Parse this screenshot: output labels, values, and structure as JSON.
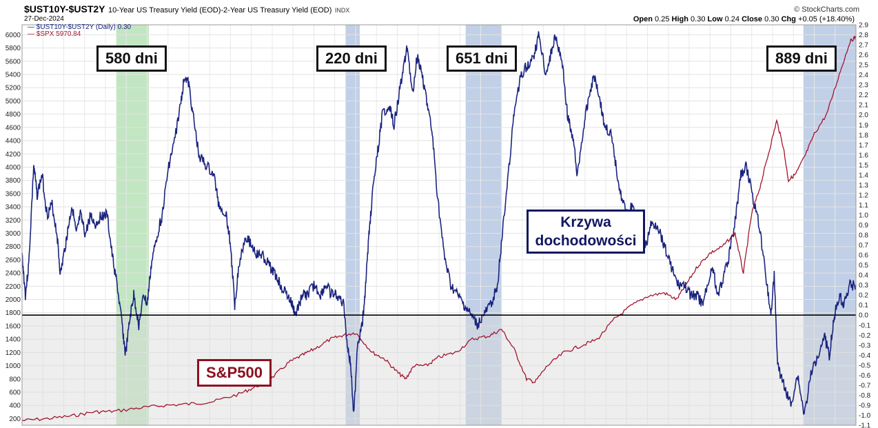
{
  "header": {
    "symbol": "$UST10Y-$UST2Y",
    "description": "10-Year US Treasury Yield (EOD)-2-Year US Treasury Yield (EOD)",
    "kind": "INDX",
    "date": "27-Dec-2024",
    "source": "© StockCharts.com",
    "ohlc": {
      "open_label": "Open",
      "open": "0.25",
      "high_label": "High",
      "high": "0.30",
      "low_label": "Low",
      "low": "0.24",
      "close_label": "Close",
      "close": "0.30",
      "chg_label": "Chg",
      "chg": "+0.05 (+18.40%)"
    }
  },
  "legend": {
    "spread": "$UST10Y-$UST2Y (Daily) 0.30",
    "spx": "$SPX 5970.84"
  },
  "annotations": {
    "periods": [
      "580 dni",
      "220 dni",
      "651 dni",
      "889 dni"
    ],
    "curve_label": "Krzywa dochodowości",
    "spx_label": "S&P500"
  },
  "colors": {
    "spread": "#1a237e",
    "spx": "#a3142d",
    "band_green": "#8fd18f",
    "band_blue": "#8ea9d4",
    "zero_line": "#000000",
    "shade_below_zero": "#d9d9d9"
  },
  "chart_data": {
    "type": "line",
    "title": "$UST10Y-$UST2Y",
    "left_axis": {
      "ylim": [
        100,
        6150
      ],
      "ticks": [
        200,
        400,
        600,
        800,
        1000,
        1200,
        1400,
        1600,
        1800,
        2000,
        2200,
        2400,
        2600,
        2800,
        3000,
        3200,
        3400,
        3600,
        3800,
        4000,
        4200,
        4400,
        4600,
        4800,
        5000,
        5200,
        5400,
        5600,
        5800,
        6000
      ]
    },
    "right_axis": {
      "ylim": [
        -1.1,
        2.9
      ],
      "ticks": [
        -1.1,
        -1.0,
        -0.9,
        -0.8,
        -0.7,
        -0.6,
        -0.5,
        -0.4,
        -0.3,
        -0.2,
        -0.1,
        0.0,
        0.1,
        0.2,
        0.3,
        0.4,
        0.5,
        0.6,
        0.7,
        0.8,
        0.9,
        1.0,
        1.1,
        1.2,
        1.3,
        1.4,
        1.5,
        1.6,
        1.7,
        1.8,
        1.9,
        2.0,
        2.1,
        2.2,
        2.3,
        2.4,
        2.5,
        2.6,
        2.7,
        2.8,
        2.9
      ]
    },
    "x": {
      "range": [
        0,
        100
      ]
    },
    "bands": [
      {
        "label": "580 dni",
        "x0": 11.3,
        "x1": 15.2,
        "color": "green"
      },
      {
        "label": "220 dni",
        "x0": 38.8,
        "x1": 40.5,
        "color": "blue"
      },
      {
        "label": "651 dni",
        "x0": 53.2,
        "x1": 57.5,
        "color": "blue"
      },
      {
        "label": "889 dni",
        "x0": 93.7,
        "x1": 100,
        "color": "blue"
      }
    ],
    "series": [
      {
        "name": "$UST10Y-$UST2Y (Daily) 0.30",
        "axis": "right",
        "points": [
          [
            0,
            0.6
          ],
          [
            0.4,
            0.2
          ],
          [
            0.8,
            0.5
          ],
          [
            1.4,
            1.5
          ],
          [
            1.8,
            1.2
          ],
          [
            2.4,
            1.4
          ],
          [
            3.0,
            1.0
          ],
          [
            3.6,
            1.1
          ],
          [
            4.2,
            0.8
          ],
          [
            4.6,
            0.4
          ],
          [
            5.2,
            0.7
          ],
          [
            5.6,
            0.9
          ],
          [
            6.0,
            1.1
          ],
          [
            6.5,
            0.8
          ],
          [
            7.0,
            1.0
          ],
          [
            7.6,
            0.8
          ],
          [
            8.2,
            1.0
          ],
          [
            8.8,
            0.9
          ],
          [
            9.5,
            1.0
          ],
          [
            10.2,
            1.0
          ],
          [
            10.8,
            0.6
          ],
          [
            11.4,
            0.3
          ],
          [
            12.0,
            -0.1
          ],
          [
            12.4,
            -0.4
          ],
          [
            13.0,
            0.0
          ],
          [
            13.4,
            0.2
          ],
          [
            14.0,
            -0.1
          ],
          [
            14.6,
            0.2
          ],
          [
            15.0,
            0.1
          ],
          [
            15.5,
            0.5
          ],
          [
            16.2,
            0.8
          ],
          [
            16.8,
            1.0
          ],
          [
            17.6,
            1.5
          ],
          [
            18.2,
            1.7
          ],
          [
            19.0,
            2.1
          ],
          [
            19.5,
            2.4
          ],
          [
            20.0,
            2.3
          ],
          [
            20.5,
            2.0
          ],
          [
            21.2,
            1.6
          ],
          [
            22.0,
            1.5
          ],
          [
            23.0,
            1.4
          ],
          [
            23.6,
            1.1
          ],
          [
            24.5,
            1.0
          ],
          [
            25.0,
            0.7
          ],
          [
            25.5,
            0.1
          ],
          [
            26.0,
            0.5
          ],
          [
            26.8,
            0.8
          ],
          [
            27.5,
            0.7
          ],
          [
            28.2,
            0.6
          ],
          [
            28.8,
            0.6
          ],
          [
            29.6,
            0.5
          ],
          [
            30.4,
            0.4
          ],
          [
            31.0,
            0.3
          ],
          [
            31.8,
            0.2
          ],
          [
            32.4,
            0.1
          ],
          [
            32.8,
            0.0
          ],
          [
            33.6,
            0.2
          ],
          [
            34.2,
            0.2
          ],
          [
            35.0,
            0.3
          ],
          [
            35.8,
            0.2
          ],
          [
            36.4,
            0.3
          ],
          [
            37.2,
            0.2
          ],
          [
            37.8,
            0.2
          ],
          [
            38.6,
            0.1
          ],
          [
            39.0,
            -0.3
          ],
          [
            39.4,
            -0.5
          ],
          [
            39.8,
            -1.0
          ],
          [
            40.2,
            -0.3
          ],
          [
            40.8,
            -0.1
          ],
          [
            41.2,
            0.3
          ],
          [
            41.6,
            0.8
          ],
          [
            42.0,
            1.2
          ],
          [
            42.6,
            1.6
          ],
          [
            43.2,
            2.0
          ],
          [
            44.0,
            2.1
          ],
          [
            44.6,
            1.9
          ],
          [
            45.2,
            2.2
          ],
          [
            45.8,
            2.5
          ],
          [
            46.2,
            2.7
          ],
          [
            46.8,
            2.2
          ],
          [
            47.4,
            2.6
          ],
          [
            48.0,
            2.4
          ],
          [
            48.6,
            2.1
          ],
          [
            49.2,
            1.8
          ],
          [
            49.8,
            1.2
          ],
          [
            50.6,
            0.6
          ],
          [
            51.4,
            0.3
          ],
          [
            52.2,
            0.2
          ],
          [
            53.0,
            0.1
          ],
          [
            53.8,
            0.0
          ],
          [
            54.6,
            -0.1
          ],
          [
            55.4,
            0.0
          ],
          [
            56.2,
            0.1
          ],
          [
            57.0,
            0.3
          ],
          [
            57.6,
            0.8
          ],
          [
            58.4,
            1.5
          ],
          [
            59.0,
            2.0
          ],
          [
            59.8,
            2.4
          ],
          [
            60.6,
            2.5
          ],
          [
            61.4,
            2.6
          ],
          [
            62.0,
            2.8
          ],
          [
            62.8,
            2.4
          ],
          [
            63.4,
            2.6
          ],
          [
            64.0,
            2.8
          ],
          [
            64.8,
            2.5
          ],
          [
            65.4,
            2.0
          ],
          [
            66.0,
            1.8
          ],
          [
            66.6,
            1.4
          ],
          [
            67.4,
            1.9
          ],
          [
            68.0,
            2.2
          ],
          [
            68.6,
            2.4
          ],
          [
            69.2,
            2.2
          ],
          [
            69.8,
            1.9
          ],
          [
            70.6,
            1.8
          ],
          [
            71.2,
            1.5
          ],
          [
            71.8,
            1.2
          ],
          [
            72.6,
            1.0
          ],
          [
            73.2,
            1.1
          ],
          [
            74.0,
            0.8
          ],
          [
            74.8,
            0.7
          ],
          [
            75.4,
            0.9
          ],
          [
            76.2,
            0.9
          ],
          [
            77.0,
            0.7
          ],
          [
            77.8,
            0.5
          ],
          [
            78.6,
            0.3
          ],
          [
            79.4,
            0.3
          ],
          [
            80.2,
            0.2
          ],
          [
            81.0,
            0.2
          ],
          [
            81.6,
            0.1
          ],
          [
            82.2,
            0.3
          ],
          [
            82.8,
            0.5
          ],
          [
            83.4,
            0.2
          ],
          [
            84.2,
            0.4
          ],
          [
            84.8,
            0.6
          ],
          [
            85.6,
            1.0
          ],
          [
            86.2,
            1.4
          ],
          [
            86.8,
            1.5
          ],
          [
            87.6,
            1.2
          ],
          [
            88.4,
            0.9
          ],
          [
            89.2,
            0.4
          ],
          [
            89.8,
            0.0
          ],
          [
            90.2,
            0.4
          ],
          [
            90.6,
            -0.5
          ],
          [
            91.4,
            -0.7
          ],
          [
            92.2,
            -0.9
          ],
          [
            93.0,
            -0.6
          ],
          [
            93.8,
            -1.0
          ],
          [
            94.6,
            -0.6
          ],
          [
            95.4,
            -0.4
          ],
          [
            96.2,
            -0.2
          ],
          [
            96.8,
            -0.4
          ],
          [
            97.4,
            0.0
          ],
          [
            98.0,
            0.2
          ],
          [
            98.6,
            0.1
          ],
          [
            99.2,
            0.3
          ],
          [
            100,
            0.3
          ]
        ]
      },
      {
        "name": "$SPX 5970.84",
        "axis": "left",
        "points": [
          [
            0,
            170
          ],
          [
            3,
            200
          ],
          [
            6,
            240
          ],
          [
            8.5,
            300
          ],
          [
            11,
            310
          ],
          [
            14,
            360
          ],
          [
            17,
            400
          ],
          [
            20,
            420
          ],
          [
            23,
            460
          ],
          [
            26,
            570
          ],
          [
            28,
            680
          ],
          [
            30,
            820
          ],
          [
            32,
            1050
          ],
          [
            33.5,
            1150
          ],
          [
            35,
            1250
          ],
          [
            37,
            1400
          ],
          [
            38.5,
            1460
          ],
          [
            40,
            1500
          ],
          [
            42,
            1200
          ],
          [
            43.5,
            1100
          ],
          [
            45,
            900
          ],
          [
            46,
            800
          ],
          [
            47,
            1000
          ],
          [
            48.5,
            1000
          ],
          [
            50,
            1130
          ],
          [
            52,
            1200
          ],
          [
            54,
            1400
          ],
          [
            56,
            1450
          ],
          [
            57.5,
            1550
          ],
          [
            59,
            1250
          ],
          [
            60.5,
            800
          ],
          [
            61.5,
            750
          ],
          [
            63,
            1000
          ],
          [
            65,
            1200
          ],
          [
            67,
            1300
          ],
          [
            69,
            1400
          ],
          [
            71,
            1700
          ],
          [
            73,
            1900
          ],
          [
            75,
            2050
          ],
          [
            77,
            2100
          ],
          [
            78.5,
            2000
          ],
          [
            79.5,
            2200
          ],
          [
            81,
            2500
          ],
          [
            82.5,
            2700
          ],
          [
            84,
            2800
          ],
          [
            85.5,
            3000
          ],
          [
            86.5,
            2400
          ],
          [
            87.5,
            3300
          ],
          [
            88.5,
            3700
          ],
          [
            89.5,
            4200
          ],
          [
            90.5,
            4700
          ],
          [
            91.3,
            4300
          ],
          [
            91.9,
            3800
          ],
          [
            92.8,
            3900
          ],
          [
            94,
            4200
          ],
          [
            95,
            4500
          ],
          [
            96.5,
            4800
          ],
          [
            98,
            5400
          ],
          [
            99.3,
            5900
          ],
          [
            100,
            5970
          ]
        ]
      }
    ],
    "grid": true,
    "zero_line": 0.0
  }
}
